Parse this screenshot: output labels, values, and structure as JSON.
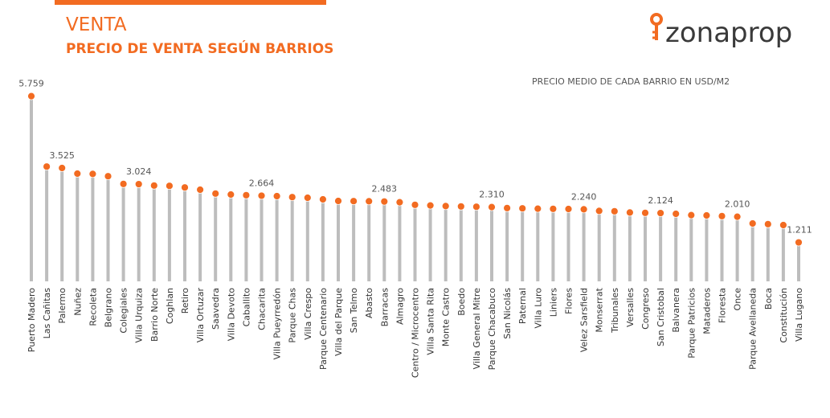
{
  "chart_data": {
    "type": "lollipop",
    "title": "VENTA",
    "subtitle": "PRECIO DE VENTA SEGÚN BARRIOS",
    "annotation": "PRECIO MEDIO DE CADA BARRIO EN USD/M2",
    "brand": "zonaprop",
    "categories": [
      "Puerto Madero",
      "Las Cañitas",
      "Palermo",
      "Nuñez",
      "Recoleta",
      "Belgrano",
      "Colegiales",
      "Villa Urquiza",
      "Barrio Norte",
      "Coghlan",
      "Retiro",
      "Villa Ortuzar",
      "Saavedra",
      "Villa Devoto",
      "Caballito",
      "Chacarita",
      "Villa Pueyrredón",
      "Parque Chas",
      "Villa Crespo",
      "Parque Centenario",
      "Villa del Parque",
      "San Telmo",
      "Abasto",
      "Barracas",
      "Almagro",
      "Centro / Microcentro",
      "Villa Santa Rita",
      "Monte Castro",
      "Boedo",
      "Villa General Mitre",
      "Parque Chacabuco",
      "San Nicolás",
      "Paternal",
      "Villa Luro",
      "Liniers",
      "Flores",
      "Velez Sarsfield",
      "Monserrat",
      "Tribunales",
      "Versalles",
      "Congreso",
      "San Cristobal",
      "Balvanera",
      "Parque Patricios",
      "Mataderos",
      "Floresta",
      "Once",
      "Parque Avellaneda",
      "Boca",
      "Constitución",
      "Villa Lugano"
    ],
    "values": [
      5759,
      3570,
      3525,
      3350,
      3340,
      3270,
      3030,
      3024,
      2980,
      2970,
      2920,
      2850,
      2730,
      2700,
      2680,
      2664,
      2650,
      2620,
      2600,
      2550,
      2500,
      2495,
      2490,
      2483,
      2460,
      2380,
      2360,
      2340,
      2330,
      2320,
      2310,
      2280,
      2270,
      2260,
      2255,
      2250,
      2240,
      2190,
      2180,
      2140,
      2130,
      2124,
      2100,
      2060,
      2050,
      2030,
      2010,
      1800,
      1780,
      1750,
      1211
    ],
    "value_labels": [
      "5.759",
      null,
      "3.525",
      null,
      null,
      null,
      null,
      "3.024",
      null,
      null,
      null,
      null,
      null,
      null,
      null,
      "2.664",
      null,
      null,
      null,
      null,
      null,
      null,
      null,
      "2.483",
      null,
      null,
      null,
      null,
      null,
      null,
      "2.310",
      null,
      null,
      null,
      null,
      null,
      "2.240",
      null,
      null,
      null,
      null,
      "2.124",
      null,
      null,
      null,
      null,
      "2.010",
      null,
      null,
      null,
      "1.211"
    ],
    "color": "#f26b21",
    "stem_color": "#bdbdbd",
    "ylim": [
      0,
      6000
    ]
  }
}
